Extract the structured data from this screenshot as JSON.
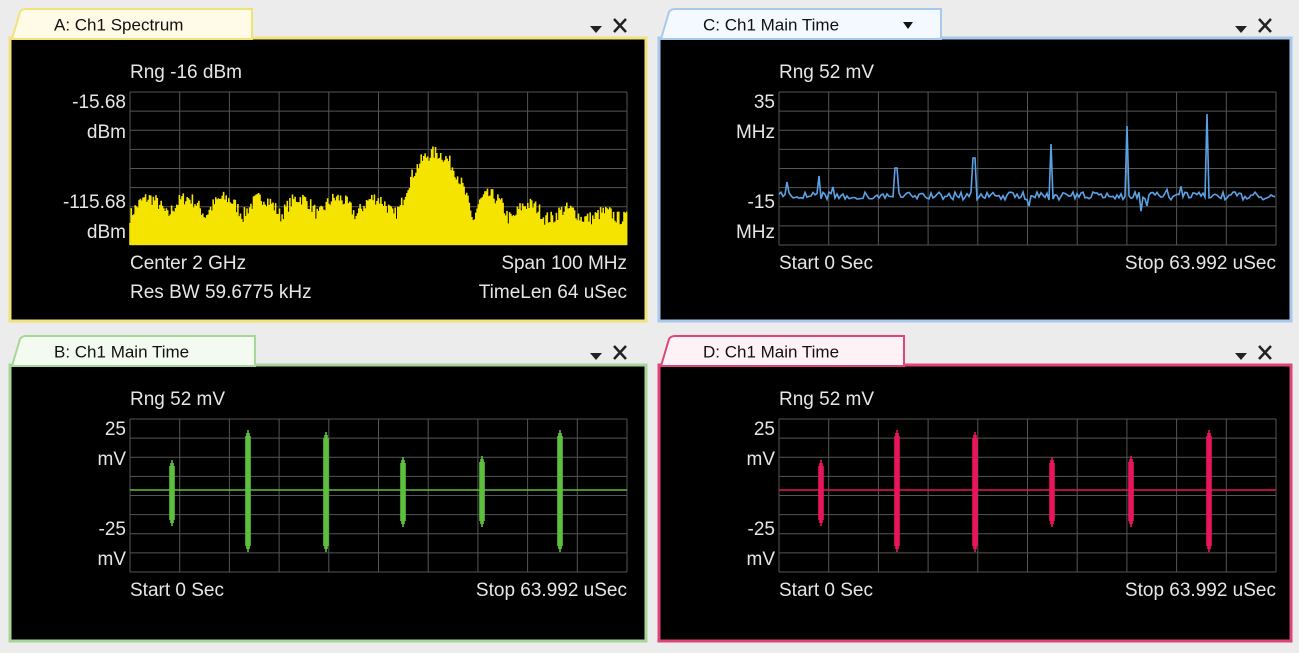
{
  "panels": [
    {
      "tab": "A: Ch1 Spectrum",
      "range": "Rng -16 dBm",
      "y_labels": [
        "-15.68",
        "dBm",
        "-115.68",
        "dBm"
      ],
      "footer_left": [
        "Center 2 GHz",
        "Res BW 59.6775 kHz"
      ],
      "footer_right": [
        "Span 100 MHz",
        "TimeLen 64 uSec"
      ]
    },
    {
      "tab": "C: Ch1 Main Time",
      "range": "Rng 52 mV",
      "y_labels": [
        "35",
        "MHz",
        "-15",
        "MHz"
      ],
      "footer_left": [
        "Start 0  Sec"
      ],
      "footer_right": [
        "Stop 63.992 uSec"
      ]
    },
    {
      "tab": "B: Ch1 Main Time",
      "range": "Rng 52 mV",
      "y_labels": [
        "25",
        "mV",
        "-25",
        "mV"
      ],
      "footer_left": [
        "Start 0  Sec"
      ],
      "footer_right": [
        "Stop 63.992 uSec"
      ]
    },
    {
      "tab": "D: Ch1 Main Time",
      "range": "Rng 52 mV",
      "y_labels": [
        "25",
        "mV",
        "-25",
        "mV"
      ],
      "footer_left": [
        "Start 0  Sec"
      ],
      "footer_right": [
        "Stop 63.992 uSec"
      ]
    }
  ]
}
